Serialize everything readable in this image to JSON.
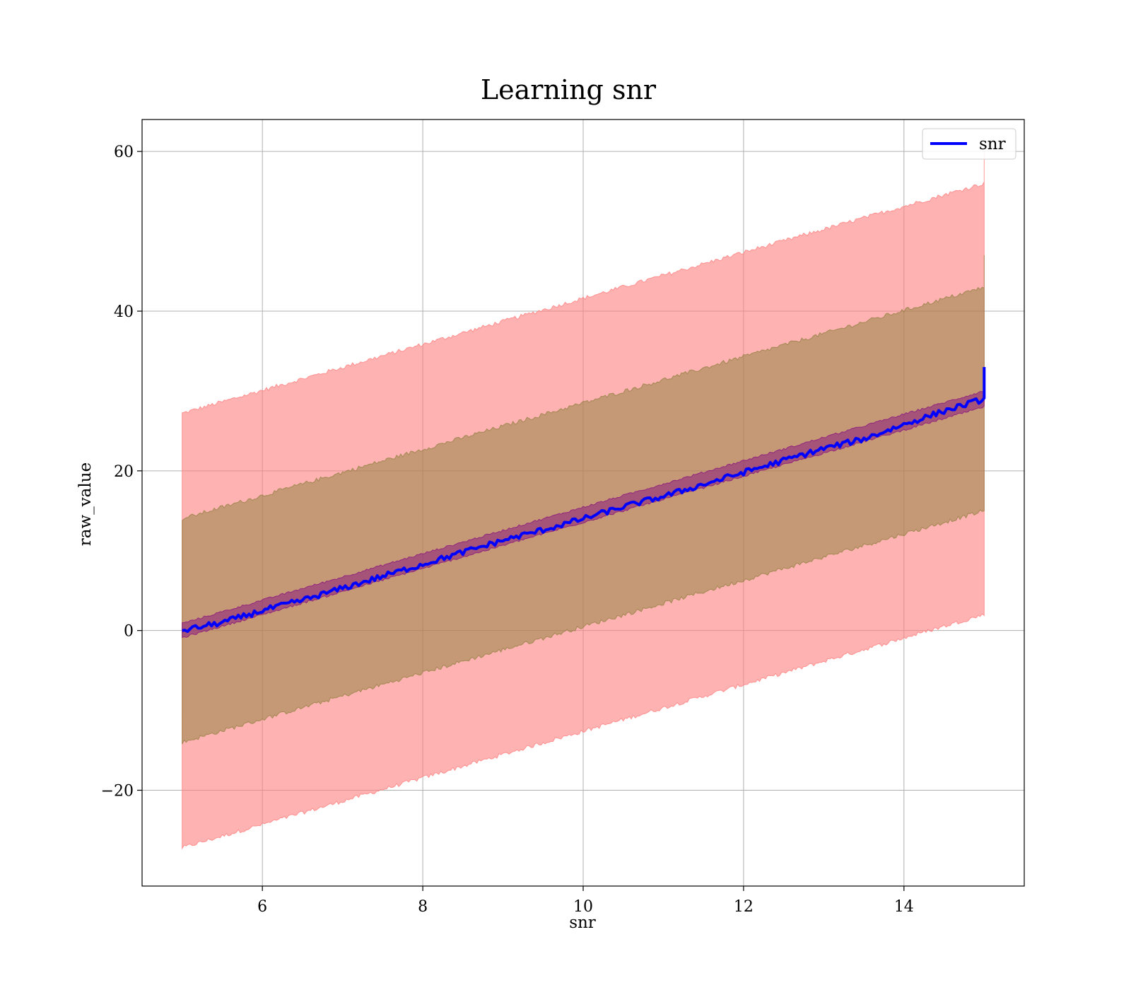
{
  "chart_data": {
    "type": "line",
    "title": "Learning snr",
    "xlabel": "snr",
    "ylabel": "raw_value",
    "xlim": [
      4.5,
      15.5
    ],
    "ylim": [
      -32,
      64
    ],
    "x_ticks": [
      6,
      8,
      10,
      12,
      14
    ],
    "y_ticks": [
      -20,
      0,
      20,
      40,
      60
    ],
    "x_tick_labels": [
      "6",
      "8",
      "10",
      "12",
      "14"
    ],
    "y_tick_labels": [
      "−20",
      "0",
      "20",
      "40",
      "60"
    ],
    "grid": true,
    "legend_position": "upper-right",
    "series": [
      {
        "name": "snr",
        "color": "#0000ff",
        "x": [
          5.0,
          5.5,
          6.0,
          6.5,
          7.0,
          7.5,
          8.0,
          8.5,
          9.0,
          9.5,
          10.0,
          10.5,
          11.0,
          11.5,
          12.0,
          12.5,
          13.0,
          13.5,
          14.0,
          14.5,
          15.0
        ],
        "y": [
          0.0,
          1.0,
          2.5,
          3.8,
          5.3,
          6.8,
          8.3,
          9.8,
          11.3,
          12.6,
          14.0,
          15.5,
          16.8,
          18.3,
          19.8,
          21.3,
          22.8,
          24.0,
          25.8,
          27.5,
          29.0
        ],
        "y_end_spike": 33.0
      }
    ],
    "bands": [
      {
        "color": "#ff7f7f",
        "opacity": 0.6,
        "x": [
          5.0,
          15.0
        ],
        "lower": [
          -27.2,
          2.0
        ],
        "upper": [
          27.2,
          56.0
        ],
        "end_spike_upper": 60.0
      },
      {
        "color": "#8b7d3a",
        "opacity": 0.5,
        "x": [
          5.0,
          15.0
        ],
        "lower": [
          -14.0,
          15.0
        ],
        "upper": [
          14.0,
          43.0
        ],
        "end_spike_upper": 47.0
      },
      {
        "color": "#800080",
        "opacity": 0.45,
        "x": [
          5.0,
          15.0
        ],
        "lower": [
          -0.9,
          28.0
        ],
        "upper": [
          0.9,
          30.0
        ]
      }
    ]
  }
}
